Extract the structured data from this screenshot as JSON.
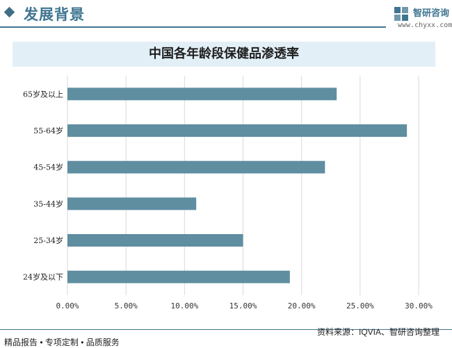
{
  "header": {
    "title": "发展背景",
    "logo_name": "智研咨询",
    "logo_url": "www.chyxx.com",
    "accent_color": "#3f7591"
  },
  "chart_data": {
    "type": "bar",
    "orientation": "horizontal",
    "title": "中国各年龄段保健品渗透率",
    "categories": [
      "65岁及以上",
      "55-64岁",
      "45-54岁",
      "35-44岁",
      "25-34岁",
      "24岁及以下"
    ],
    "values": [
      23.0,
      29.0,
      22.0,
      11.0,
      15.0,
      19.0
    ],
    "x_ticks": [
      "0.00%",
      "5.00%",
      "10.00%",
      "15.00%",
      "20.00%",
      "25.00%",
      "30.00%"
    ],
    "xlim": [
      0,
      30
    ],
    "bar_color": "#5f8ea1",
    "grid": true
  },
  "footer": {
    "left": "精品报告 • 专项定制 • 品质服务",
    "right": "资料来源：IQVIA、智研咨询整理"
  }
}
